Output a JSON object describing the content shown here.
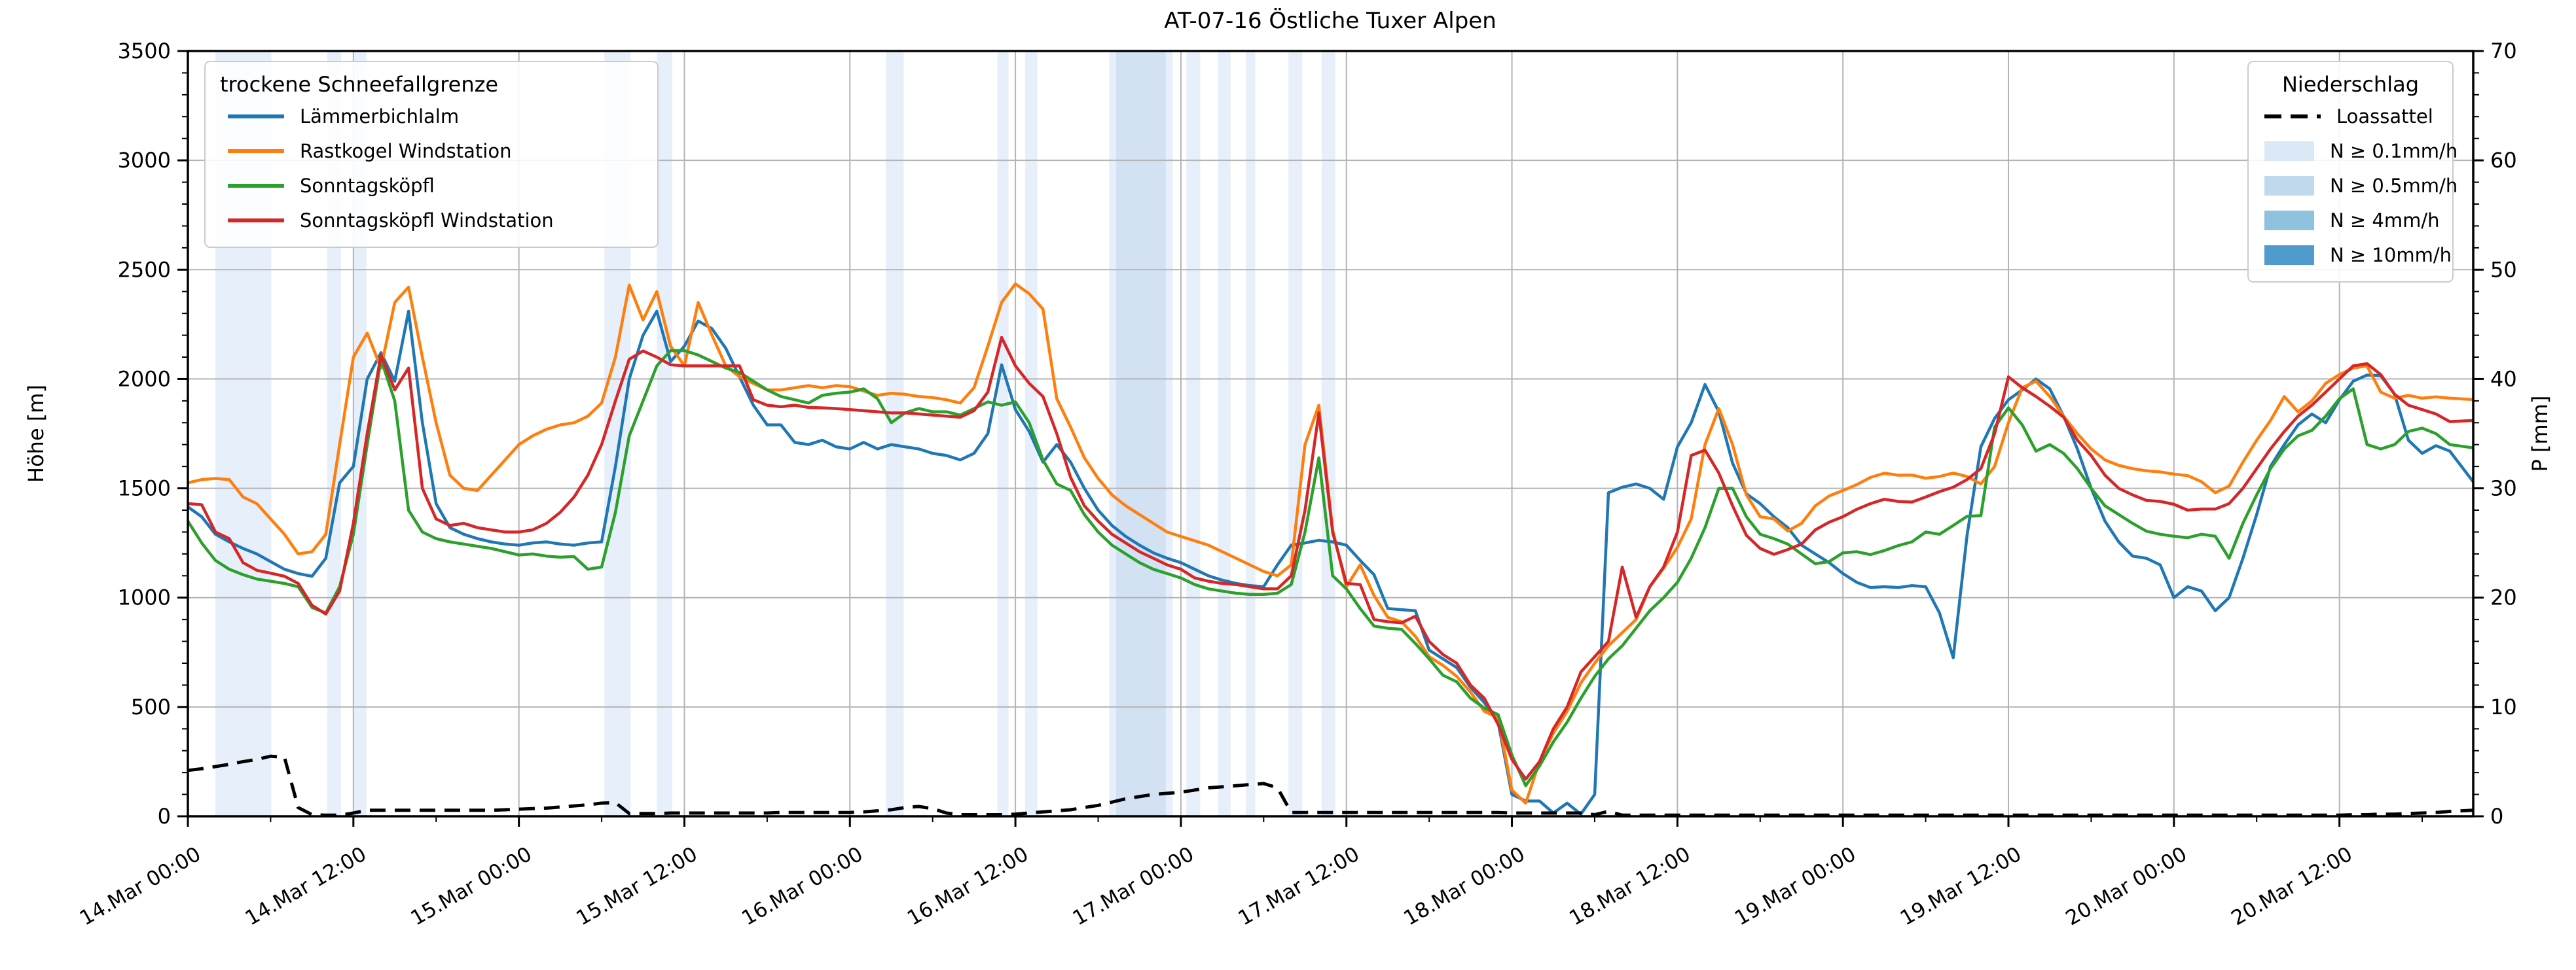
{
  "title": "AT-07-16 Östliche Tuxer Alpen",
  "left_axis": {
    "label": "Höhe [m]",
    "min": 0,
    "max": 3500,
    "major_step": 500,
    "minor_step": 100
  },
  "right_axis": {
    "label": "P [mm]",
    "min": 0,
    "max": 70,
    "major_step": 10,
    "minor_step": 2
  },
  "x_axis": {
    "tick_labels": [
      "14.Mar 00:00",
      "14.Mar 12:00",
      "15.Mar 00:00",
      "15.Mar 12:00",
      "16.Mar 00:00",
      "16.Mar 12:00",
      "17.Mar 00:00",
      "17.Mar 12:00",
      "18.Mar 00:00",
      "18.Mar 12:00",
      "19.Mar 00:00",
      "19.Mar 12:00",
      "20.Mar 00:00",
      "20.Mar 12:00"
    ],
    "major_step_hours": 12,
    "minor_step_hours": 6
  },
  "legend_left": {
    "title": "trockene Schneefallgrenze",
    "items": [
      {
        "label": "Lämmerbichlalm",
        "color": "#1f77b4"
      },
      {
        "label": "Rastkogel Windstation",
        "color": "#ff7f0e"
      },
      {
        "label": "Sonntagsköpfl",
        "color": "#2ca02c"
      },
      {
        "label": "Sonntagsköpfl Windstation",
        "color": "#d62728"
      }
    ]
  },
  "legend_right": {
    "title": "Niederschlag",
    "line_item": {
      "label": "Loassattel",
      "color": "#000000"
    },
    "patch_items": [
      {
        "label": "N ≥ 0.1mm/h",
        "color": "#dbe9f6"
      },
      {
        "label": "N ≥ 0.5mm/h",
        "color": "#c1d9ed"
      },
      {
        "label": "N ≥ 4mm/h",
        "color": "#8fc2de"
      },
      {
        "label": "N ≥ 10mm/h",
        "color": "#4f9bcb"
      }
    ]
  },
  "chart_data": {
    "type": "line",
    "title": "AT-07-16 Östliche Tuxer Alpen",
    "x_unit": "hours since 14.Mar 00:00",
    "x_max": 165.7,
    "ylabel": "Höhe [m]",
    "ylim": [
      0,
      3500
    ],
    "y2label": "P [mm]",
    "y2lim": [
      0,
      70
    ],
    "grid": true,
    "grid_color": "#b4b4b4",
    "band_colors": {
      "0.1": "#e7effa",
      "0.5": "#d2e2f3",
      "4": "#8fc2de",
      "10": "#4f9bcb"
    },
    "precip_bands": [
      {
        "start": 2.0,
        "end": 6.05,
        "level": "0.1"
      },
      {
        "start": 10.1,
        "end": 11.1,
        "level": "0.1"
      },
      {
        "start": 12.0,
        "end": 12.95,
        "level": "0.1"
      },
      {
        "start": 30.2,
        "end": 32.1,
        "level": "0.1"
      },
      {
        "start": 34.0,
        "end": 35.1,
        "level": "0.1"
      },
      {
        "start": 50.6,
        "end": 51.9,
        "level": "0.1"
      },
      {
        "start": 58.7,
        "end": 59.5,
        "level": "0.1"
      },
      {
        "start": 60.7,
        "end": 61.6,
        "level": "0.1"
      },
      {
        "start": 66.8,
        "end": 71.4,
        "level": "0.1"
      },
      {
        "start": 67.3,
        "end": 70.9,
        "level": "0.5"
      },
      {
        "start": 72.4,
        "end": 73.4,
        "level": "0.1"
      },
      {
        "start": 74.7,
        "end": 75.6,
        "level": "0.1"
      },
      {
        "start": 76.7,
        "end": 77.4,
        "level": "0.1"
      },
      {
        "start": 79.8,
        "end": 80.8,
        "level": "0.1"
      },
      {
        "start": 82.2,
        "end": 83.2,
        "level": "0.1"
      }
    ],
    "series": [
      {
        "name": "Lämmerbichlalm",
        "color": "#1f77b4",
        "axis": "left",
        "values": [
          1415,
          1370,
          1290,
          1255,
          1225,
          1200,
          1165,
          1130,
          1110,
          1098,
          1180,
          1525,
          1600,
          2000,
          2120,
          1990,
          2310,
          1800,
          1430,
          1320,
          1290,
          1270,
          1255,
          1245,
          1240,
          1250,
          1255,
          1245,
          1240,
          1250,
          1255,
          1600,
          2000,
          2200,
          2310,
          2080,
          2150,
          2265,
          2230,
          2140,
          2010,
          1880,
          1790,
          1790,
          1710,
          1700,
          1720,
          1690,
          1680,
          1710,
          1680,
          1700,
          1690,
          1680,
          1660,
          1650,
          1630,
          1660,
          1750,
          2065,
          1860,
          1760,
          1620,
          1700,
          1620,
          1500,
          1400,
          1330,
          1280,
          1240,
          1205,
          1180,
          1160,
          1130,
          1100,
          1080,
          1065,
          1055,
          1050,
          1150,
          1240,
          1250,
          1262,
          1255,
          1240,
          1170,
          1105,
          950,
          945,
          940,
          760,
          720,
          680,
          590,
          520,
          430,
          100,
          70,
          70,
          15,
          60,
          10,
          100,
          1480,
          1505,
          1520,
          1500,
          1450,
          1690,
          1800,
          1975,
          1850,
          1615,
          1475,
          1430,
          1370,
          1320,
          1240,
          1200,
          1160,
          1110,
          1070,
          1046,
          1050,
          1046,
          1055,
          1050,
          930,
          725,
          1285,
          1690,
          1820,
          1905,
          1950,
          2000,
          1955,
          1830,
          1680,
          1500,
          1350,
          1255,
          1190,
          1180,
          1150,
          1000,
          1050,
          1030,
          940,
          1000,
          1180,
          1380,
          1600,
          1700,
          1790,
          1840,
          1800,
          1905,
          1990,
          2018,
          2015,
          1930,
          1720,
          1660,
          1695,
          1670,
          1530
        ]
      },
      {
        "name": "Rastkogel Windstation",
        "color": "#ff7f0e",
        "axis": "left",
        "values": [
          1525,
          1540,
          1545,
          1540,
          1460,
          1430,
          1360,
          1290,
          1200,
          1210,
          1290,
          1700,
          2100,
          2210,
          2050,
          2350,
          2420,
          2100,
          1800,
          1560,
          1500,
          1490,
          1560,
          1630,
          1700,
          1740,
          1770,
          1790,
          1800,
          1830,
          1890,
          2100,
          2430,
          2270,
          2400,
          2150,
          2060,
          2350,
          2200,
          2060,
          2010,
          1980,
          1950,
          1950,
          1960,
          1970,
          1960,
          1970,
          1965,
          1945,
          1925,
          1935,
          1930,
          1920,
          1915,
          1905,
          1890,
          1960,
          2150,
          2350,
          2435,
          2390,
          2320,
          1910,
          1780,
          1640,
          1545,
          1470,
          1420,
          1380,
          1340,
          1300,
          1280,
          1260,
          1240,
          1210,
          1180,
          1150,
          1120,
          1100,
          1150,
          1700,
          1880,
          1310,
          1050,
          1150,
          1010,
          910,
          890,
          823,
          730,
          690,
          640,
          568,
          480,
          450,
          120,
          60,
          250,
          380,
          480,
          610,
          700,
          780,
          840,
          900,
          1050,
          1135,
          1230,
          1360,
          1700,
          1865,
          1700,
          1470,
          1370,
          1360,
          1305,
          1340,
          1420,
          1465,
          1490,
          1517,
          1550,
          1569,
          1560,
          1561,
          1546,
          1554,
          1570,
          1554,
          1520,
          1600,
          1800,
          1960,
          1990,
          1920,
          1830,
          1750,
          1680,
          1630,
          1605,
          1590,
          1580,
          1575,
          1565,
          1558,
          1530,
          1480,
          1510,
          1620,
          1720,
          1810,
          1920,
          1850,
          1900,
          1980,
          2020,
          2050,
          2060,
          1940,
          1912,
          1925,
          1912,
          1918,
          1912,
          1906
        ]
      },
      {
        "name": "Sonntagsköpfl",
        "color": "#2ca02c",
        "axis": "left",
        "values": [
          1350,
          1250,
          1170,
          1130,
          1105,
          1085,
          1075,
          1065,
          1050,
          955,
          930,
          1050,
          1290,
          1700,
          2090,
          1900,
          1400,
          1300,
          1270,
          1255,
          1245,
          1235,
          1225,
          1210,
          1195,
          1200,
          1190,
          1185,
          1188,
          1130,
          1140,
          1390,
          1740,
          1900,
          2060,
          2130,
          2130,
          2110,
          2080,
          2050,
          2030,
          1990,
          1950,
          1920,
          1905,
          1890,
          1925,
          1935,
          1940,
          1955,
          1910,
          1800,
          1845,
          1865,
          1850,
          1850,
          1835,
          1865,
          1895,
          1880,
          1895,
          1800,
          1630,
          1520,
          1490,
          1380,
          1300,
          1240,
          1200,
          1160,
          1130,
          1110,
          1090,
          1060,
          1040,
          1030,
          1020,
          1015,
          1015,
          1020,
          1060,
          1300,
          1640,
          1100,
          1040,
          950,
          870,
          860,
          855,
          790,
          720,
          645,
          615,
          540,
          495,
          465,
          280,
          140,
          230,
          340,
          430,
          540,
          640,
          720,
          780,
          860,
          940,
          1000,
          1070,
          1180,
          1320,
          1500,
          1500,
          1370,
          1290,
          1270,
          1245,
          1200,
          1155,
          1165,
          1205,
          1210,
          1197,
          1215,
          1238,
          1255,
          1300,
          1290,
          1330,
          1372,
          1375,
          1780,
          1868,
          1790,
          1670,
          1700,
          1660,
          1590,
          1500,
          1420,
          1380,
          1340,
          1304,
          1290,
          1281,
          1274,
          1290,
          1281,
          1180,
          1340,
          1470,
          1590,
          1680,
          1740,
          1765,
          1830,
          1910,
          1955,
          1700,
          1680,
          1700,
          1760,
          1775,
          1750,
          1700,
          1685
        ]
      },
      {
        "name": "Sonntagsköpfl Windstation",
        "color": "#d62728",
        "axis": "left",
        "values": [
          1430,
          1425,
          1300,
          1270,
          1160,
          1125,
          1112,
          1098,
          1065,
          965,
          925,
          1030,
          1340,
          1750,
          2110,
          1950,
          2050,
          1500,
          1360,
          1330,
          1340,
          1320,
          1310,
          1300,
          1300,
          1310,
          1340,
          1390,
          1460,
          1560,
          1700,
          1900,
          2090,
          2128,
          2100,
          2065,
          2060,
          2060,
          2060,
          2060,
          2060,
          1905,
          1880,
          1873,
          1880,
          1870,
          1868,
          1865,
          1860,
          1855,
          1850,
          1845,
          1845,
          1840,
          1835,
          1830,
          1825,
          1855,
          1940,
          2190,
          2060,
          1980,
          1920,
          1750,
          1550,
          1420,
          1350,
          1290,
          1250,
          1210,
          1180,
          1150,
          1130,
          1090,
          1075,
          1065,
          1060,
          1050,
          1040,
          1040,
          1100,
          1400,
          1845,
          1300,
          1065,
          1060,
          900,
          890,
          885,
          915,
          800,
          740,
          700,
          600,
          540,
          420,
          260,
          170,
          250,
          400,
          500,
          660,
          730,
          800,
          1140,
          910,
          1050,
          1140,
          1300,
          1650,
          1675,
          1570,
          1420,
          1285,
          1225,
          1198,
          1220,
          1245,
          1310,
          1345,
          1370,
          1404,
          1430,
          1450,
          1440,
          1437,
          1460,
          1485,
          1505,
          1540,
          1590,
          1750,
          2010,
          1960,
          1920,
          1875,
          1825,
          1720,
          1650,
          1560,
          1500,
          1470,
          1445,
          1440,
          1427,
          1400,
          1405,
          1405,
          1430,
          1500,
          1590,
          1680,
          1760,
          1830,
          1880,
          1940,
          2000,
          2060,
          2070,
          2020,
          1930,
          1880,
          1860,
          1840,
          1805,
          1810
        ]
      }
    ],
    "loassattel": {
      "name": "Loassattel",
      "color": "#000000",
      "axis": "right",
      "dashed": true,
      "values": [
        4.2,
        4.35,
        4.55,
        4.75,
        5.0,
        5.2,
        5.5,
        5.4,
        0.8,
        0.15,
        0.1,
        0.1,
        0.3,
        0.55,
        0.55,
        0.55,
        0.55,
        0.55,
        0.55,
        0.55,
        0.55,
        0.55,
        0.55,
        0.6,
        0.65,
        0.7,
        0.75,
        0.85,
        0.95,
        1.05,
        1.2,
        1.25,
        0.25,
        0.25,
        0.25,
        0.3,
        0.3,
        0.3,
        0.3,
        0.3,
        0.3,
        0.3,
        0.3,
        0.35,
        0.35,
        0.35,
        0.35,
        0.35,
        0.35,
        0.4,
        0.5,
        0.6,
        0.8,
        0.9,
        0.7,
        0.3,
        0.15,
        0.15,
        0.15,
        0.15,
        0.2,
        0.3,
        0.4,
        0.5,
        0.6,
        0.8,
        1.0,
        1.3,
        1.6,
        1.8,
        2.0,
        2.1,
        2.2,
        2.4,
        2.6,
        2.7,
        2.8,
        2.9,
        3.0,
        2.6,
        0.35,
        0.35,
        0.35,
        0.35,
        0.35,
        0.35,
        0.35,
        0.35,
        0.35,
        0.35,
        0.35,
        0.35,
        0.35,
        0.35,
        0.35,
        0.35,
        0.3,
        0.3,
        0.3,
        0.3,
        0.3,
        0.3,
        0.15,
        0.45,
        0.1,
        0.1,
        0.1,
        0.1,
        0.1,
        0.1,
        0.1,
        0.1,
        0.1,
        0.1,
        0.1,
        0.1,
        0.1,
        0.1,
        0.1,
        0.1,
        0.1,
        0.1,
        0.1,
        0.1,
        0.1,
        0.1,
        0.1,
        0.1,
        0.1,
        0.1,
        0.1,
        0.1,
        0.1,
        0.1,
        0.1,
        0.1,
        0.1,
        0.1,
        0.1,
        0.1,
        0.1,
        0.1,
        0.1,
        0.1,
        0.1,
        0.1,
        0.1,
        0.1,
        0.1,
        0.1,
        0.1,
        0.1,
        0.1,
        0.1,
        0.1,
        0.1,
        0.1,
        0.15,
        0.15,
        0.2,
        0.2,
        0.25,
        0.3,
        0.35,
        0.45,
        0.55
      ]
    }
  }
}
